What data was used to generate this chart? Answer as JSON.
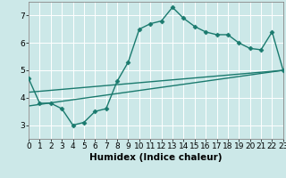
{
  "xlabel": "Humidex (Indice chaleur)",
  "background_color": "#cce8e8",
  "line_color": "#1a7a6e",
  "grid_color": "#ffffff",
  "xlim": [
    0,
    23
  ],
  "ylim": [
    2.5,
    7.5
  ],
  "yticks": [
    3,
    4,
    5,
    6,
    7
  ],
  "xticks": [
    0,
    1,
    2,
    3,
    4,
    5,
    6,
    7,
    8,
    9,
    10,
    11,
    12,
    13,
    14,
    15,
    16,
    17,
    18,
    19,
    20,
    21,
    22,
    23
  ],
  "series1_x": [
    0,
    1,
    2,
    3,
    4,
    5,
    6,
    7,
    8,
    9,
    10,
    11,
    12,
    13,
    14,
    15,
    16,
    17,
    18,
    19,
    20,
    21,
    22,
    23
  ],
  "series1_y": [
    4.7,
    3.8,
    3.8,
    3.6,
    3.0,
    3.1,
    3.5,
    3.6,
    4.6,
    5.3,
    6.5,
    6.7,
    6.8,
    7.3,
    6.9,
    6.6,
    6.4,
    6.3,
    6.3,
    6.0,
    5.8,
    5.75,
    6.4,
    5.0
  ],
  "series2_x": [
    0,
    23
  ],
  "series2_y": [
    3.7,
    5.0
  ],
  "series3_x": [
    0,
    23
  ],
  "series3_y": [
    4.2,
    5.0
  ],
  "markersize": 2.5,
  "linewidth": 1.0,
  "xlabel_fontsize": 7.5,
  "tick_fontsize": 6.5
}
